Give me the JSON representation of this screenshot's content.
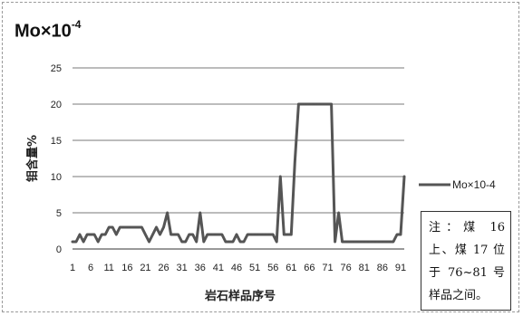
{
  "chart_data": {
    "type": "line",
    "title_base": "Mo×10",
    "title_exp": "-4",
    "xlabel": "岩石样品序号",
    "ylabel": "钼含量%",
    "ylim": [
      0,
      25
    ],
    "yticks": [
      "0",
      "5",
      "10",
      "15",
      "20",
      "25"
    ],
    "grid": true,
    "legend_position": "right",
    "x_tick_labels": [
      "1",
      "6",
      "11",
      "16",
      "21",
      "26",
      "31",
      "36",
      "41",
      "46",
      "51",
      "56",
      "61",
      "66",
      "71",
      "76",
      "81",
      "86",
      "91"
    ],
    "series": [
      {
        "name": "Mo×10-4",
        "color": "#555555",
        "x": [
          1,
          2,
          3,
          4,
          5,
          6,
          7,
          8,
          9,
          10,
          11,
          12,
          13,
          14,
          15,
          16,
          17,
          18,
          19,
          20,
          21,
          22,
          23,
          24,
          25,
          26,
          27,
          28,
          29,
          30,
          31,
          32,
          33,
          34,
          35,
          36,
          37,
          38,
          39,
          40,
          41,
          42,
          43,
          44,
          45,
          46,
          47,
          48,
          49,
          50,
          51,
          52,
          53,
          54,
          55,
          56,
          57,
          58,
          59,
          60,
          61,
          62,
          63,
          64,
          65,
          66,
          67,
          68,
          69,
          70,
          71,
          72,
          73,
          74,
          75,
          76,
          77,
          78,
          79,
          80,
          81,
          82,
          83,
          84,
          85,
          86,
          87,
          88,
          89,
          90,
          91,
          92
        ],
        "values": [
          1,
          1,
          2,
          1,
          2,
          2,
          2,
          1,
          2,
          2,
          3,
          3,
          2,
          3,
          3,
          3,
          3,
          3,
          3,
          3,
          2,
          1,
          2,
          3,
          2,
          3,
          5,
          2,
          2,
          2,
          1,
          1,
          2,
          2,
          1,
          5,
          1,
          2,
          2,
          2,
          2,
          2,
          1,
          1,
          1,
          2,
          1,
          1,
          2,
          2,
          2,
          2,
          2,
          2,
          2,
          2,
          1,
          10,
          2,
          2,
          2,
          12,
          20,
          20,
          20,
          20,
          20,
          20,
          20,
          20,
          20,
          20,
          1,
          5,
          1,
          1,
          1,
          1,
          1,
          1,
          1,
          1,
          1,
          1,
          1,
          1,
          1,
          1,
          1,
          2,
          2,
          10
        ]
      }
    ]
  },
  "note": {
    "text": "注：煤 16上、煤 17 位于 76~81 号样品之间。"
  }
}
